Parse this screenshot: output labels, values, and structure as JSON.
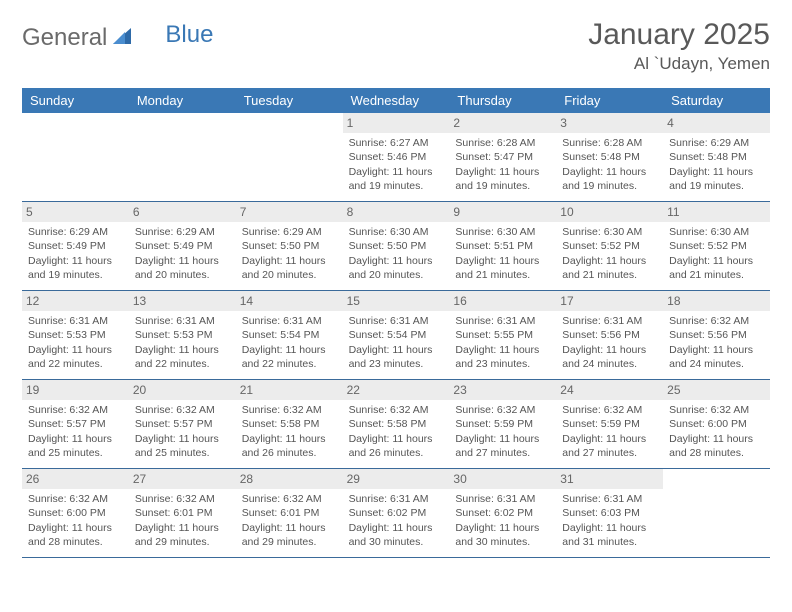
{
  "brand": {
    "part1": "General",
    "part2": "Blue"
  },
  "title": "January 2025",
  "location": "Al `Udayn, Yemen",
  "colors": {
    "header_bg": "#3a78b5",
    "header_text": "#ffffff",
    "daynum_bg": "#ececec",
    "row_border": "#3a6a9a",
    "body_text": "#555555",
    "title_text": "#595959"
  },
  "day_headers": [
    "Sunday",
    "Monday",
    "Tuesday",
    "Wednesday",
    "Thursday",
    "Friday",
    "Saturday"
  ],
  "weeks": [
    [
      {
        "n": "",
        "sr": "",
        "ss": "",
        "dl": ""
      },
      {
        "n": "",
        "sr": "",
        "ss": "",
        "dl": ""
      },
      {
        "n": "",
        "sr": "",
        "ss": "",
        "dl": ""
      },
      {
        "n": "1",
        "sr": "Sunrise: 6:27 AM",
        "ss": "Sunset: 5:46 PM",
        "dl": "Daylight: 11 hours and 19 minutes."
      },
      {
        "n": "2",
        "sr": "Sunrise: 6:28 AM",
        "ss": "Sunset: 5:47 PM",
        "dl": "Daylight: 11 hours and 19 minutes."
      },
      {
        "n": "3",
        "sr": "Sunrise: 6:28 AM",
        "ss": "Sunset: 5:48 PM",
        "dl": "Daylight: 11 hours and 19 minutes."
      },
      {
        "n": "4",
        "sr": "Sunrise: 6:29 AM",
        "ss": "Sunset: 5:48 PM",
        "dl": "Daylight: 11 hours and 19 minutes."
      }
    ],
    [
      {
        "n": "5",
        "sr": "Sunrise: 6:29 AM",
        "ss": "Sunset: 5:49 PM",
        "dl": "Daylight: 11 hours and 19 minutes."
      },
      {
        "n": "6",
        "sr": "Sunrise: 6:29 AM",
        "ss": "Sunset: 5:49 PM",
        "dl": "Daylight: 11 hours and 20 minutes."
      },
      {
        "n": "7",
        "sr": "Sunrise: 6:29 AM",
        "ss": "Sunset: 5:50 PM",
        "dl": "Daylight: 11 hours and 20 minutes."
      },
      {
        "n": "8",
        "sr": "Sunrise: 6:30 AM",
        "ss": "Sunset: 5:50 PM",
        "dl": "Daylight: 11 hours and 20 minutes."
      },
      {
        "n": "9",
        "sr": "Sunrise: 6:30 AM",
        "ss": "Sunset: 5:51 PM",
        "dl": "Daylight: 11 hours and 21 minutes."
      },
      {
        "n": "10",
        "sr": "Sunrise: 6:30 AM",
        "ss": "Sunset: 5:52 PM",
        "dl": "Daylight: 11 hours and 21 minutes."
      },
      {
        "n": "11",
        "sr": "Sunrise: 6:30 AM",
        "ss": "Sunset: 5:52 PM",
        "dl": "Daylight: 11 hours and 21 minutes."
      }
    ],
    [
      {
        "n": "12",
        "sr": "Sunrise: 6:31 AM",
        "ss": "Sunset: 5:53 PM",
        "dl": "Daylight: 11 hours and 22 minutes."
      },
      {
        "n": "13",
        "sr": "Sunrise: 6:31 AM",
        "ss": "Sunset: 5:53 PM",
        "dl": "Daylight: 11 hours and 22 minutes."
      },
      {
        "n": "14",
        "sr": "Sunrise: 6:31 AM",
        "ss": "Sunset: 5:54 PM",
        "dl": "Daylight: 11 hours and 22 minutes."
      },
      {
        "n": "15",
        "sr": "Sunrise: 6:31 AM",
        "ss": "Sunset: 5:54 PM",
        "dl": "Daylight: 11 hours and 23 minutes."
      },
      {
        "n": "16",
        "sr": "Sunrise: 6:31 AM",
        "ss": "Sunset: 5:55 PM",
        "dl": "Daylight: 11 hours and 23 minutes."
      },
      {
        "n": "17",
        "sr": "Sunrise: 6:31 AM",
        "ss": "Sunset: 5:56 PM",
        "dl": "Daylight: 11 hours and 24 minutes."
      },
      {
        "n": "18",
        "sr": "Sunrise: 6:32 AM",
        "ss": "Sunset: 5:56 PM",
        "dl": "Daylight: 11 hours and 24 minutes."
      }
    ],
    [
      {
        "n": "19",
        "sr": "Sunrise: 6:32 AM",
        "ss": "Sunset: 5:57 PM",
        "dl": "Daylight: 11 hours and 25 minutes."
      },
      {
        "n": "20",
        "sr": "Sunrise: 6:32 AM",
        "ss": "Sunset: 5:57 PM",
        "dl": "Daylight: 11 hours and 25 minutes."
      },
      {
        "n": "21",
        "sr": "Sunrise: 6:32 AM",
        "ss": "Sunset: 5:58 PM",
        "dl": "Daylight: 11 hours and 26 minutes."
      },
      {
        "n": "22",
        "sr": "Sunrise: 6:32 AM",
        "ss": "Sunset: 5:58 PM",
        "dl": "Daylight: 11 hours and 26 minutes."
      },
      {
        "n": "23",
        "sr": "Sunrise: 6:32 AM",
        "ss": "Sunset: 5:59 PM",
        "dl": "Daylight: 11 hours and 27 minutes."
      },
      {
        "n": "24",
        "sr": "Sunrise: 6:32 AM",
        "ss": "Sunset: 5:59 PM",
        "dl": "Daylight: 11 hours and 27 minutes."
      },
      {
        "n": "25",
        "sr": "Sunrise: 6:32 AM",
        "ss": "Sunset: 6:00 PM",
        "dl": "Daylight: 11 hours and 28 minutes."
      }
    ],
    [
      {
        "n": "26",
        "sr": "Sunrise: 6:32 AM",
        "ss": "Sunset: 6:00 PM",
        "dl": "Daylight: 11 hours and 28 minutes."
      },
      {
        "n": "27",
        "sr": "Sunrise: 6:32 AM",
        "ss": "Sunset: 6:01 PM",
        "dl": "Daylight: 11 hours and 29 minutes."
      },
      {
        "n": "28",
        "sr": "Sunrise: 6:32 AM",
        "ss": "Sunset: 6:01 PM",
        "dl": "Daylight: 11 hours and 29 minutes."
      },
      {
        "n": "29",
        "sr": "Sunrise: 6:31 AM",
        "ss": "Sunset: 6:02 PM",
        "dl": "Daylight: 11 hours and 30 minutes."
      },
      {
        "n": "30",
        "sr": "Sunrise: 6:31 AM",
        "ss": "Sunset: 6:02 PM",
        "dl": "Daylight: 11 hours and 30 minutes."
      },
      {
        "n": "31",
        "sr": "Sunrise: 6:31 AM",
        "ss": "Sunset: 6:03 PM",
        "dl": "Daylight: 11 hours and 31 minutes."
      },
      {
        "n": "",
        "sr": "",
        "ss": "",
        "dl": ""
      }
    ]
  ]
}
